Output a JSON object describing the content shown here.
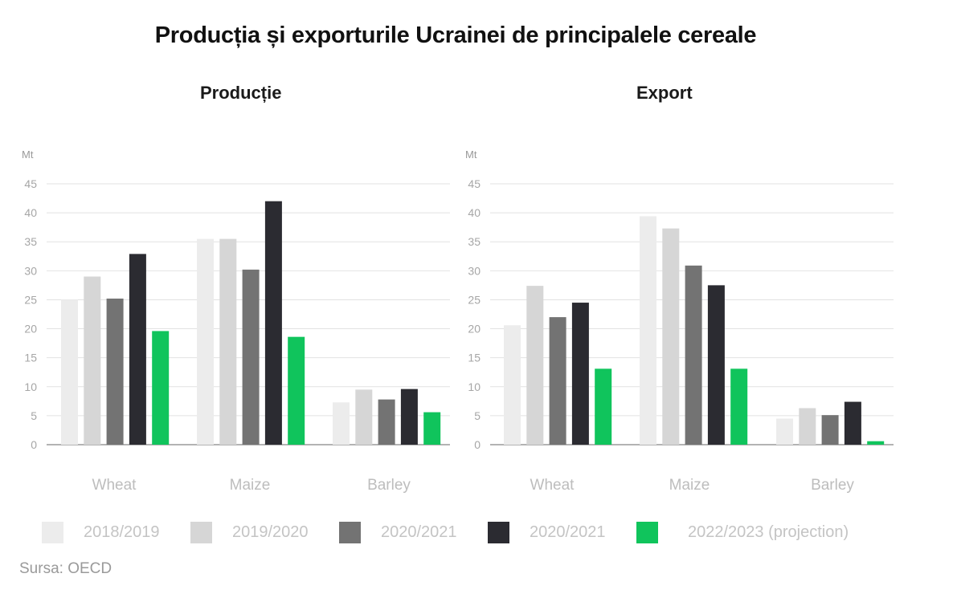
{
  "title": "Producția și exporturile Ucrainei de principalele cereale",
  "source": "Sursa: OECD",
  "colors": {
    "2018/2019": "#ececec",
    "2019/2020": "#d6d6d6",
    "2020/2021_gray": "#737373",
    "2020/2021_dark": "#2b2b31",
    "2022/2023": "#10c45c"
  },
  "legend": [
    {
      "label": "2018/2019",
      "color": "#ececec"
    },
    {
      "label": "2019/2020",
      "color": "#d6d6d6"
    },
    {
      "label": "2020/2021",
      "color": "#737373"
    },
    {
      "label": "2020/2021",
      "color": "#2b2b31"
    },
    {
      "label": "2022/2023 (projection)",
      "color": "#10c45c"
    }
  ],
  "chart_data": [
    {
      "type": "bar",
      "title": "Producție",
      "ylabel": "Mt",
      "ylim": [
        0,
        45
      ],
      "yticks": [
        0,
        5,
        10,
        15,
        20,
        25,
        30,
        35,
        40,
        45
      ],
      "categories": [
        "Wheat",
        "Maize",
        "Barley"
      ],
      "grid": true,
      "legend_position": "bottom",
      "series": [
        {
          "name": "2018/2019",
          "color": "#ececec",
          "values": [
            25.0,
            35.5,
            7.3
          ]
        },
        {
          "name": "2019/2020",
          "color": "#d6d6d6",
          "values": [
            29.0,
            35.5,
            9.5
          ]
        },
        {
          "name": "2020/2021",
          "color": "#737373",
          "values": [
            25.2,
            30.2,
            7.8
          ]
        },
        {
          "name": "2020/2021",
          "color": "#2b2b31",
          "values": [
            32.9,
            42.0,
            9.6
          ]
        },
        {
          "name": "2022/2023 (projection)",
          "color": "#10c45c",
          "values": [
            19.6,
            18.6,
            5.6
          ]
        }
      ]
    },
    {
      "type": "bar",
      "title": "Export",
      "ylabel": "Mt",
      "ylim": [
        0,
        45
      ],
      "yticks": [
        0,
        5,
        10,
        15,
        20,
        25,
        30,
        35,
        40,
        45
      ],
      "categories": [
        "Wheat",
        "Maize",
        "Barley"
      ],
      "grid": true,
      "legend_position": "bottom",
      "series": [
        {
          "name": "2018/2019",
          "color": "#ececec",
          "values": [
            20.6,
            39.4,
            4.5
          ]
        },
        {
          "name": "2019/2020",
          "color": "#d6d6d6",
          "values": [
            27.4,
            37.3,
            6.3
          ]
        },
        {
          "name": "2020/2021",
          "color": "#737373",
          "values": [
            22.0,
            30.9,
            5.1
          ]
        },
        {
          "name": "2020/2021",
          "color": "#2b2b31",
          "values": [
            24.5,
            27.5,
            7.4
          ]
        },
        {
          "name": "2022/2023 (projection)",
          "color": "#10c45c",
          "values": [
            13.1,
            13.1,
            0.6
          ]
        }
      ]
    }
  ]
}
